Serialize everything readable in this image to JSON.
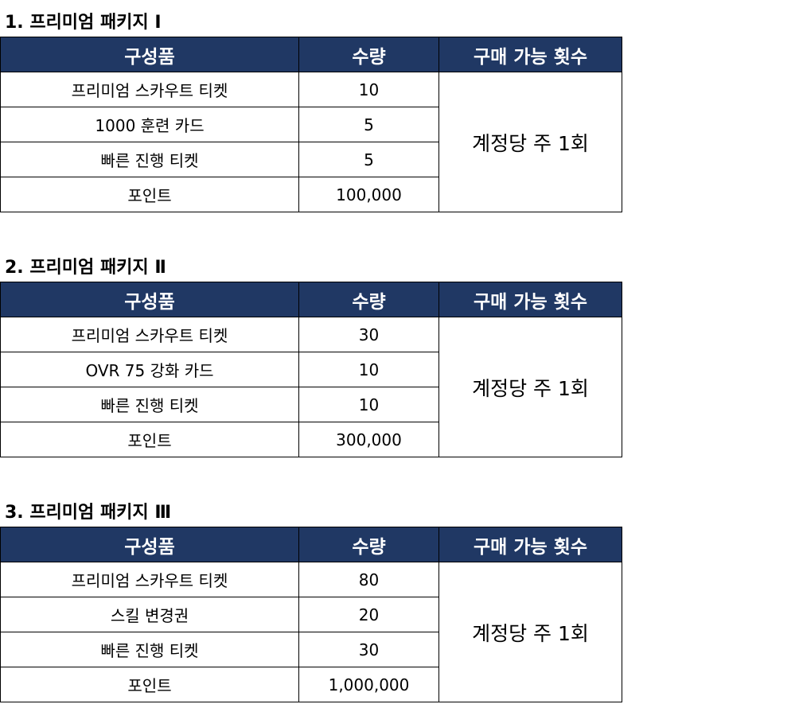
{
  "headers": {
    "item": "구성품",
    "qty": "수량",
    "limit": "구매 가능 횟수"
  },
  "header_color": "#203864",
  "packages": [
    {
      "title": "1. 프리미엄 패키지  Ⅰ",
      "limit": "계정당 주 1회",
      "rows": [
        {
          "item": "프리미엄 스카우트 티켓",
          "qty": "10"
        },
        {
          "item": "1000 훈련 카드",
          "qty": "5"
        },
        {
          "item": "빠른 진행 티켓",
          "qty": "5"
        },
        {
          "item": "포인트",
          "qty": "100,000"
        }
      ]
    },
    {
      "title": "2. 프리미엄 패키지 Ⅱ",
      "limit": "계정당 주 1회",
      "rows": [
        {
          "item": "프리미엄 스카우트 티켓",
          "qty": "30"
        },
        {
          "item": "OVR 75 강화 카드",
          "qty": "10"
        },
        {
          "item": "빠른 진행 티켓",
          "qty": "10"
        },
        {
          "item": "포인트",
          "qty": "300,000"
        }
      ]
    },
    {
      "title": "3. 프리미엄 패키지 Ⅲ",
      "limit": "계정당 주 1회",
      "rows": [
        {
          "item": "프리미엄 스카우트 티켓",
          "qty": "80"
        },
        {
          "item": "스킬 변경권",
          "qty": "20"
        },
        {
          "item": "빠른 진행 티켓",
          "qty": "30"
        },
        {
          "item": "포인트",
          "qty": "1,000,000"
        }
      ]
    }
  ]
}
